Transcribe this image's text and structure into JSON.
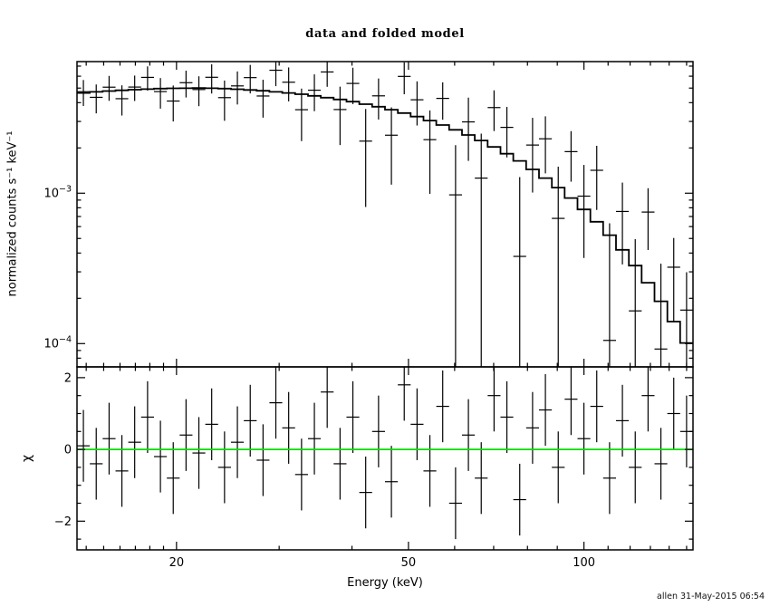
{
  "chart_data": {
    "type": "line",
    "variant": "xspec-data-and-folded-model",
    "title": "data and folded model",
    "xlabel": "Energy (keV)",
    "ylabel_top": "normalized counts s⁻¹ keV⁻¹",
    "ylabel_bottom": "χ",
    "footer": "allen 31-May-2015 06:54",
    "axis_color": "#000000",
    "x_scale": "log",
    "x_range": [
      13.5,
      153.84
    ],
    "x_ticks": [
      20,
      50,
      100
    ],
    "x_tick_labels": [
      "20",
      "50",
      "100"
    ],
    "x_minor_ticks": [
      14,
      15,
      16,
      17,
      18,
      19,
      30,
      40,
      60,
      70,
      80,
      90,
      110,
      120,
      130,
      140,
      150
    ],
    "top_panel": {
      "y_scale": "log",
      "y_range": [
        7e-05,
        0.0075
      ],
      "y_ticks": [
        {
          "value": 0.001,
          "base": "10",
          "exp": "−3"
        },
        {
          "value": 0.0001,
          "base": "10",
          "exp": "−4"
        }
      ]
    },
    "bottom_panel": {
      "y_scale": "linear",
      "y_range": [
        -2.8,
        2.3
      ],
      "y_ticks": [
        {
          "value": 2,
          "label": "2"
        },
        {
          "value": 0,
          "label": "0"
        },
        {
          "value": -2,
          "label": "−2"
        }
      ],
      "zero_line_color": "#00dd00"
    },
    "bins": {
      "edges": [
        13.5,
        14.2,
        14.94,
        15.72,
        16.53,
        17.39,
        18.3,
        19.25,
        20.25,
        21.3,
        22.41,
        23.57,
        24.8,
        26.09,
        27.45,
        28.87,
        30.37,
        31.95,
        33.62,
        35.36,
        37.2,
        39.14,
        41.17,
        43.31,
        45.57,
        47.94,
        50.43,
        53.05,
        55.81,
        58.71,
        61.77,
        64.98,
        68.36,
        71.91,
        75.65,
        79.59,
        83.73,
        88.08,
        92.66,
        97.48,
        102.55,
        107.88,
        113.49,
        119.39,
        125.6,
        132.13,
        139.0,
        146.23,
        153.84
      ],
      "model": [
        0.00464,
        0.00472,
        0.00478,
        0.00483,
        0.00488,
        0.00492,
        0.00496,
        0.00498,
        0.00499,
        0.005,
        0.00499,
        0.00496,
        0.00491,
        0.00486,
        0.0048,
        0.00472,
        0.00464,
        0.00455,
        0.00444,
        0.00432,
        0.0042,
        0.00406,
        0.00391,
        0.00376,
        0.00359,
        0.00341,
        0.00323,
        0.00304,
        0.00284,
        0.00264,
        0.00244,
        0.00224,
        0.00203,
        0.00183,
        0.00164,
        0.00144,
        0.00126,
        0.00109,
        0.000929,
        0.00078,
        0.000646,
        0.000526,
        0.00042,
        0.00033,
        0.000254,
        0.000191,
        0.00014,
        0.000101
      ],
      "data": [
        0.00473,
        0.00434,
        0.00507,
        0.00425,
        0.00508,
        0.00589,
        0.00474,
        0.0041,
        0.00543,
        0.00489,
        0.0059,
        0.00432,
        0.00517,
        0.00587,
        0.00443,
        0.00657,
        0.00547,
        0.00359,
        0.00484,
        0.0064,
        0.0036,
        0.00537,
        0.00222,
        0.00444,
        0.00243,
        0.00598,
        0.00418,
        0.00227,
        0.00427,
        0.000975,
        0.00298,
        0.00126,
        0.00371,
        0.00274,
        0.00038,
        0.00209,
        0.0023,
        0.00068,
        0.00189,
        0.000956,
        0.00142,
        0.000105,
        0.000756,
        0.000165,
        0.000749,
        9.2e-05,
        0.000322,
        0.000167
      ],
      "data_err": [
        0.000928,
        0.000944,
        0.000956,
        0.000966,
        0.000976,
        0.00108,
        0.00109,
        0.0011,
        0.0011,
        0.0011,
        0.0013,
        0.00129,
        0.00128,
        0.00126,
        0.00125,
        0.00142,
        0.00139,
        0.00137,
        0.00133,
        0.0013,
        0.00151,
        0.00146,
        0.00141,
        0.00135,
        0.00129,
        0.00143,
        0.00136,
        0.00128,
        0.00119,
        0.00111,
        0.00134,
        0.00123,
        0.00112,
        0.00101,
        0.0009,
        0.00108,
        0.000945,
        0.00082,
        0.000697,
        0.000585,
        0.000646,
        0.000526,
        0.00042,
        0.00033,
        0.00033,
        0.000248,
        0.000182,
        0.000131
      ],
      "chi": [
        0.1,
        -0.4,
        0.3,
        -0.6,
        0.2,
        0.9,
        -0.2,
        -0.8,
        0.4,
        -0.1,
        0.7,
        -0.5,
        0.2,
        0.8,
        -0.3,
        1.3,
        0.6,
        -0.7,
        0.3,
        1.6,
        -0.4,
        0.9,
        -1.2,
        0.5,
        -0.9,
        1.8,
        0.7,
        -0.6,
        1.2,
        -1.5,
        0.4,
        -0.8,
        1.5,
        0.9,
        -1.4,
        0.6,
        1.1,
        -0.5,
        1.4,
        0.3,
        1.2,
        -0.8,
        0.8,
        -0.5,
        1.5,
        -0.4,
        1.0,
        0.5
      ],
      "chi_err": 1
    }
  }
}
